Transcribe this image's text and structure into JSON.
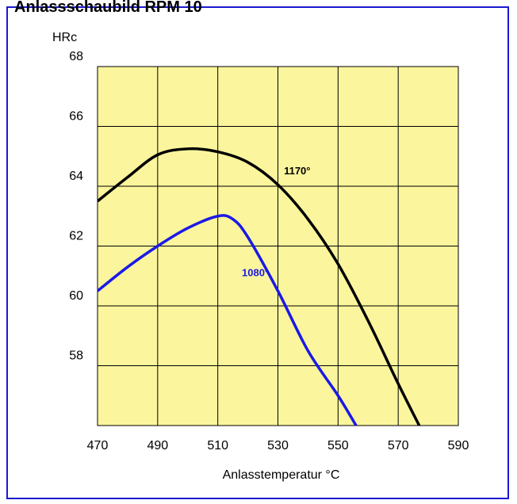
{
  "title": "Anlassschaubild RPM 10",
  "chart_data": {
    "type": "line",
    "xlabel": "Anlasstemperatur °C",
    "ylabel": "HRc",
    "xlim": [
      470,
      590
    ],
    "ylim": [
      56,
      68
    ],
    "xticks": [
      "470",
      "490",
      "510",
      "530",
      "550",
      "570",
      "590"
    ],
    "yticks": [
      "58",
      "60",
      "62",
      "64",
      "66",
      "68"
    ],
    "grid": true,
    "plot_background": "#fbf59d",
    "series": [
      {
        "name": "1170°",
        "color": "#000000",
        "x": [
          470,
          480,
          490,
          500,
          510,
          520,
          530,
          540,
          550,
          560,
          570,
          577
        ],
        "y": [
          63.5,
          64.3,
          65.05,
          65.25,
          65.15,
          64.8,
          64.05,
          62.9,
          61.4,
          59.5,
          57.4,
          56.0
        ]
      },
      {
        "name": "1080°",
        "color": "#1a1ae6",
        "x": [
          470,
          480,
          490,
          500,
          510,
          515,
          520,
          530,
          540,
          550,
          556
        ],
        "y": [
          60.5,
          61.3,
          62.0,
          62.6,
          63.0,
          62.9,
          62.3,
          60.5,
          58.5,
          57.0,
          56.0
        ]
      }
    ],
    "annotations": [
      {
        "text": "1170°",
        "x": 532,
        "y": 64.4,
        "series": 0
      },
      {
        "text": "1080°",
        "x": 518,
        "y": 61.0,
        "series": 1
      }
    ]
  }
}
